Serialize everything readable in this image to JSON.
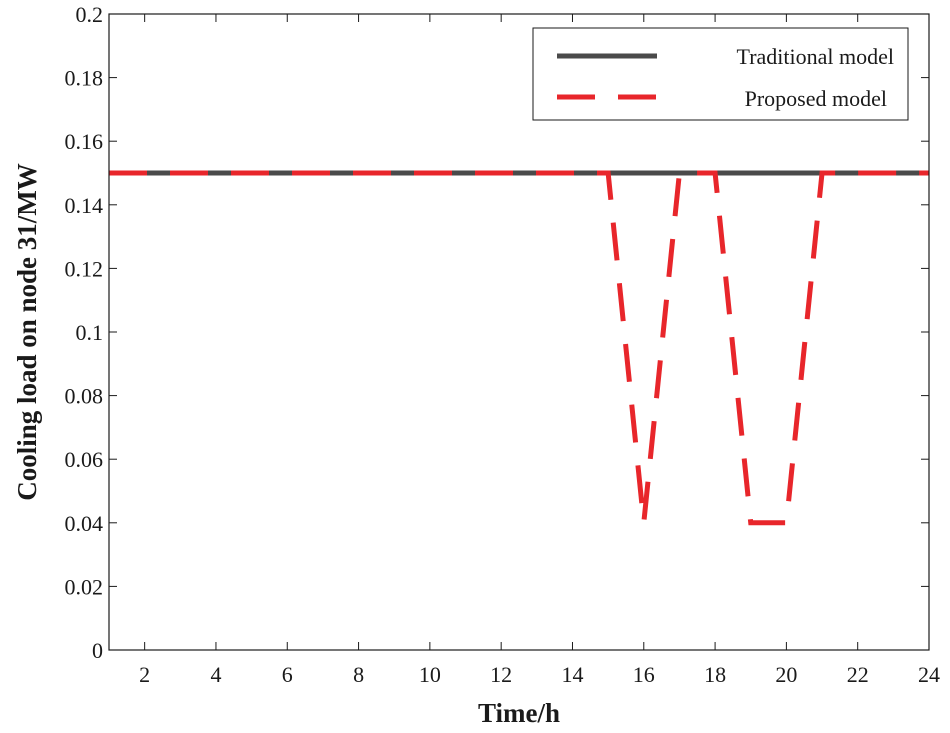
{
  "chart_data": {
    "type": "line",
    "title": "",
    "xlabel": "Time/h",
    "ylabel": "Cooling load on node 31/MW",
    "xlim": [
      1,
      24
    ],
    "ylim": [
      0,
      0.2
    ],
    "xticks": [
      2,
      4,
      6,
      8,
      10,
      12,
      14,
      16,
      18,
      20,
      22,
      24
    ],
    "yticks": [
      0,
      0.02,
      0.04,
      0.06,
      0.08,
      0.1,
      0.12,
      0.14,
      0.16,
      0.18,
      0.2
    ],
    "xtick_labels": [
      "2",
      "4",
      "6",
      "8",
      "10",
      "12",
      "14",
      "16",
      "18",
      "20",
      "22",
      "24"
    ],
    "ytick_labels": [
      "0",
      "0.02",
      "0.04",
      "0.06",
      "0.08",
      "0.1",
      "0.12",
      "0.14",
      "0.16",
      "0.18",
      "0.2"
    ],
    "grid": false,
    "legend_position": "top-right",
    "x": [
      1,
      2,
      3,
      4,
      5,
      6,
      7,
      8,
      9,
      10,
      11,
      12,
      13,
      14,
      15,
      16,
      17,
      18,
      19,
      20,
      21,
      22,
      23,
      24
    ],
    "series": [
      {
        "name": "Traditional model",
        "color": "#4a4a4a",
        "style": "solid",
        "values": [
          0.15,
          0.15,
          0.15,
          0.15,
          0.15,
          0.15,
          0.15,
          0.15,
          0.15,
          0.15,
          0.15,
          0.15,
          0.15,
          0.15,
          0.15,
          0.15,
          0.15,
          0.15,
          0.15,
          0.15,
          0.15,
          0.15,
          0.15,
          0.15
        ]
      },
      {
        "name": "Proposed model",
        "color": "#e8262b",
        "style": "dashed",
        "values": [
          0.15,
          0.15,
          0.15,
          0.15,
          0.15,
          0.15,
          0.15,
          0.15,
          0.15,
          0.15,
          0.15,
          0.15,
          0.15,
          0.15,
          0.15,
          0.04,
          0.15,
          0.15,
          0.04,
          0.04,
          0.15,
          0.15,
          0.15,
          0.15
        ]
      }
    ]
  }
}
